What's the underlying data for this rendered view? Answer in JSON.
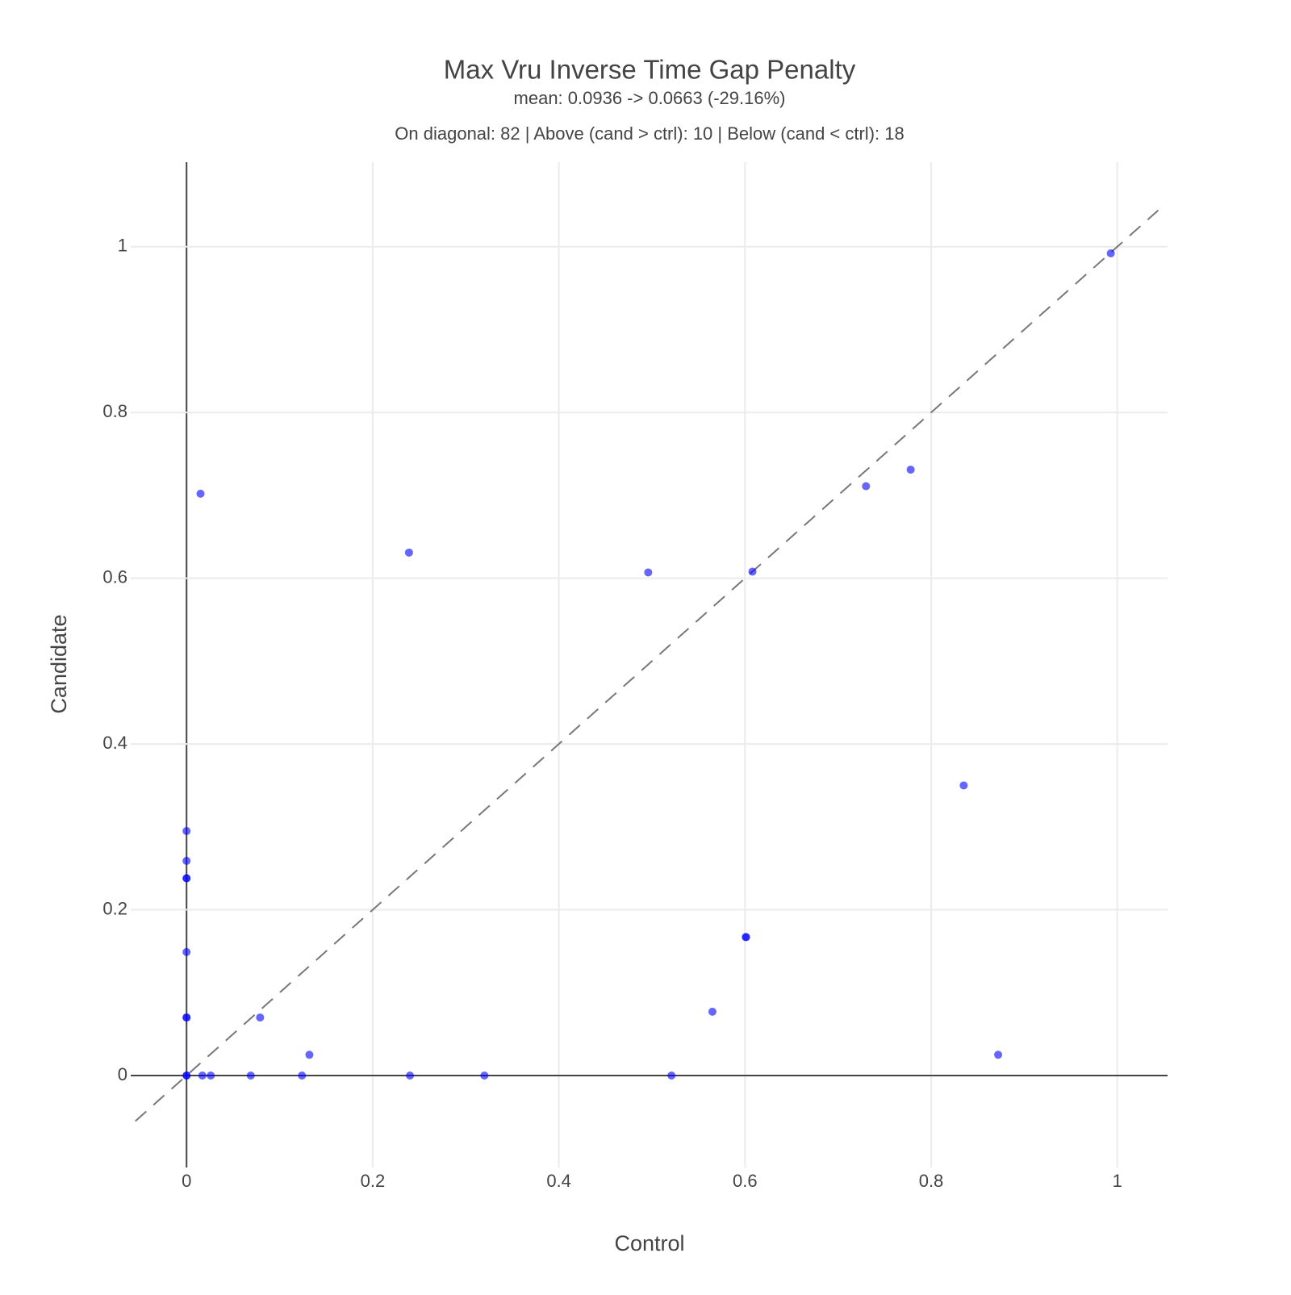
{
  "chart_data": {
    "type": "scatter",
    "title": "Max Vru Inverse Time Gap Penalty",
    "subtitle": "mean: 0.0936 -> 0.0663 (-29.16%)",
    "annotation": "On diagonal: 82 | Above (cand > ctrl): 10 | Below (cand < ctrl): 18",
    "x_label": "Control",
    "y_label": "Candidate",
    "x": [
      0.993,
      0.015,
      0.239,
      0.496,
      0.608,
      0.73,
      0.778,
      0.835,
      0,
      0,
      0,
      0,
      0,
      0,
      0,
      0.079,
      0.132,
      0.601,
      0.601,
      0.565,
      0.872,
      0,
      0,
      0.017,
      0.026,
      0.069,
      0.124,
      0.24,
      0.32,
      0.521
    ],
    "y": [
      0.992,
      0.702,
      0.631,
      0.607,
      0.608,
      0.711,
      0.731,
      0.35,
      0.295,
      0.259,
      0.238,
      0.238,
      0.149,
      0.07,
      0.07,
      0.07,
      0.025,
      0.167,
      0.167,
      0.077,
      0.025,
      0,
      0,
      0,
      0,
      0,
      0,
      0,
      0,
      0
    ],
    "color": "#0000ff",
    "opacity": 0.6,
    "xlim": [
      -0.06,
      1.054
    ],
    "ylim": [
      -0.111,
      1.102
    ],
    "xticks": [
      0,
      0.2,
      0.4,
      0.6,
      0.8,
      1
    ],
    "yticks": [
      0,
      0.2,
      0.4,
      0.6,
      0.8,
      1
    ],
    "grid": true,
    "zero_lines": true,
    "diagonal": true
  }
}
